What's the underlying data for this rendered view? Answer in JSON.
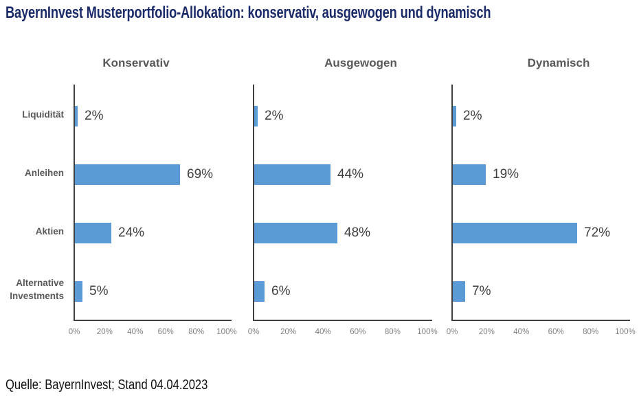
{
  "page": {
    "title": "BayernInvest Musterportfolio-Allokation: konservativ, ausgewogen und dynamisch",
    "source": "Quelle: BayernInvest; Stand 04.04.2023"
  },
  "colors": {
    "heading": "#1b2a68",
    "bar": "#5b9bd5",
    "axis_line": "#3f3f3f",
    "chart_title": "#595959",
    "category_label": "#595959",
    "value_label": "#3f3f3f",
    "tick_label": "#7f7f7f",
    "background": "#ffffff"
  },
  "chart_data": [
    {
      "type": "bar",
      "orientation": "horizontal",
      "title": "Konservativ",
      "categories": [
        "Liquidität",
        "Anleihen",
        "Aktien",
        "Alternative Investments"
      ],
      "values": [
        2,
        69,
        24,
        5
      ],
      "data_labels": [
        "2%",
        "69%",
        "24%",
        "5%"
      ],
      "xlim": [
        0,
        100
      ],
      "x_tick_labels": [
        "0%",
        "20%",
        "40%",
        "60%",
        "80%",
        "100%"
      ],
      "grid": false,
      "legend": false,
      "category_labels_shown": true
    },
    {
      "type": "bar",
      "orientation": "horizontal",
      "title": "Ausgewogen",
      "categories": [
        "Liquidität",
        "Anleihen",
        "Aktien",
        "Alternative Investments"
      ],
      "values": [
        2,
        44,
        48,
        6
      ],
      "data_labels": [
        "2%",
        "44%",
        "48%",
        "6%"
      ],
      "xlim": [
        0,
        100
      ],
      "x_tick_labels": [
        "0%",
        "20%",
        "40%",
        "60%",
        "80%",
        "100%"
      ],
      "grid": false,
      "legend": false,
      "category_labels_shown": false
    },
    {
      "type": "bar",
      "orientation": "horizontal",
      "title": "Dynamisch",
      "categories": [
        "Liquidität",
        "Anleihen",
        "Aktien",
        "Alternative Investments"
      ],
      "values": [
        2,
        19,
        72,
        7
      ],
      "data_labels": [
        "2%",
        "19%",
        "72%",
        "7%"
      ],
      "xlim": [
        0,
        100
      ],
      "x_tick_labels": [
        "0%",
        "20%",
        "40%",
        "60%",
        "80%",
        "100%"
      ],
      "grid": false,
      "legend": false,
      "category_labels_shown": false
    }
  ]
}
